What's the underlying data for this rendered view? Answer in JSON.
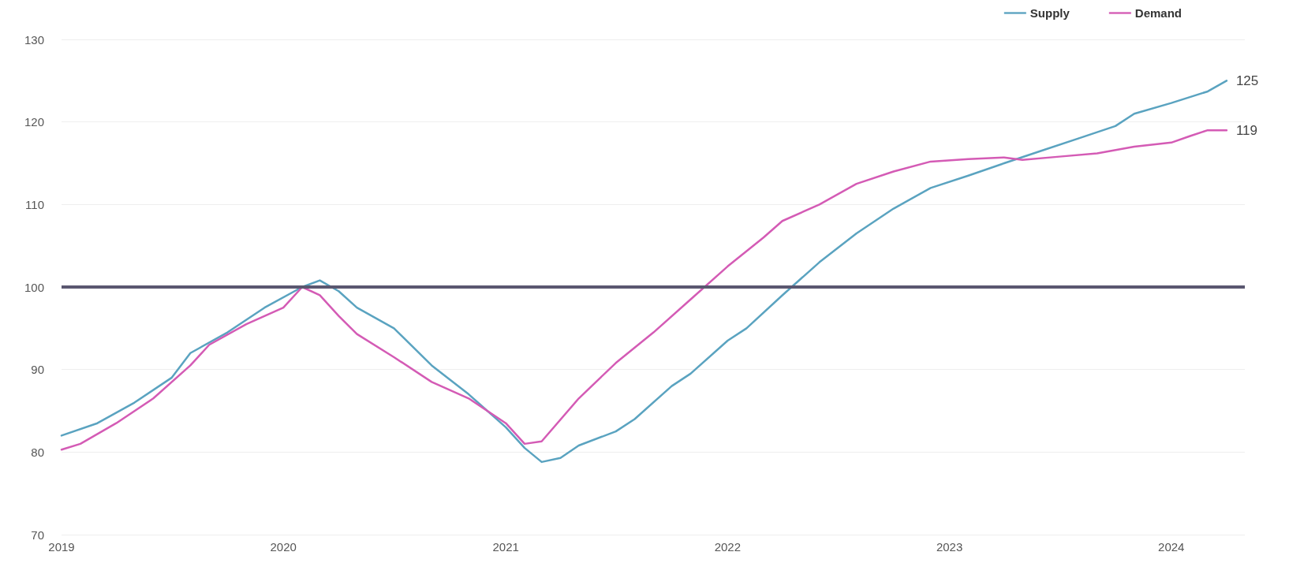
{
  "chart_data": {
    "type": "line",
    "xlim": [
      "2019-01",
      "2024-05"
    ],
    "xticks": [
      "2019",
      "2020",
      "2021",
      "2022",
      "2023",
      "2024"
    ],
    "ylim": [
      70,
      130
    ],
    "yticks": [
      70,
      80,
      90,
      100,
      110,
      120,
      130
    ],
    "grid": "y",
    "legend": "top right",
    "marker": "none",
    "line_style": "solid",
    "ref_lines": [
      {
        "axis": "y",
        "value": 100,
        "color": "#5a5770"
      }
    ],
    "series": [
      {
        "name": "Supply",
        "color": "#5aa3c0",
        "x": [
          "2019-01",
          "2019-03",
          "2019-05",
          "2019-07",
          "2019-08",
          "2019-10",
          "2019-12",
          "2020-02",
          "2020-03",
          "2020-04",
          "2020-05",
          "2020-07",
          "2020-09",
          "2020-11",
          "2021-01",
          "2021-02",
          "2021-03",
          "2021-04",
          "2021-05",
          "2021-07",
          "2021-08",
          "2021-10",
          "2021-11",
          "2022-01",
          "2022-02",
          "2022-04",
          "2022-06",
          "2022-08",
          "2022-10",
          "2022-12",
          "2023-02",
          "2023-04",
          "2023-06",
          "2023-08",
          "2023-10",
          "2023-11",
          "2024-01",
          "2024-03",
          "2024-04"
        ],
        "values": [
          82,
          83.5,
          86,
          89,
          92,
          94.5,
          97.5,
          100,
          100.8,
          99.5,
          97.5,
          95,
          90.5,
          87,
          83,
          80.5,
          78.8,
          79.3,
          80.8,
          82.5,
          84,
          88,
          89.5,
          93.5,
          95,
          99,
          103,
          106.5,
          109.5,
          112,
          113.5,
          115,
          116.5,
          118,
          119.5,
          121,
          122.3,
          123.7,
          125
        ],
        "value_labels": [
          null,
          null,
          null,
          null,
          null,
          null,
          null,
          null,
          null,
          null,
          null,
          null,
          null,
          null,
          null,
          null,
          null,
          null,
          null,
          null,
          null,
          null,
          null,
          null,
          null,
          null,
          null,
          null,
          null,
          null,
          null,
          null,
          null,
          null,
          null,
          null,
          null,
          null,
          "125"
        ]
      },
      {
        "name": "Demand",
        "color": "#d45bb5",
        "x": [
          "2019-01",
          "2019-02",
          "2019-04",
          "2019-06",
          "2019-08",
          "2019-09",
          "2019-11",
          "2020-01",
          "2020-02",
          "2020-03",
          "2020-04",
          "2020-05",
          "2020-07",
          "2020-09",
          "2020-11",
          "2021-01",
          "2021-02",
          "2021-03",
          "2021-05",
          "2021-07",
          "2021-09",
          "2021-11",
          "2022-01",
          "2022-03",
          "2022-04",
          "2022-06",
          "2022-08",
          "2022-10",
          "2022-12",
          "2023-02",
          "2023-04",
          "2023-05",
          "2023-07",
          "2023-09",
          "2023-11",
          "2024-01",
          "2024-02",
          "2024-03",
          "2024-04"
        ],
        "values": [
          80.3,
          81,
          83.5,
          86.5,
          90.5,
          93,
          95.5,
          97.5,
          100,
          99,
          96.5,
          94.3,
          91.5,
          88.5,
          86.5,
          83.5,
          81,
          81.3,
          86.5,
          90.8,
          94.5,
          98.5,
          102.5,
          106,
          108,
          110,
          112.5,
          114,
          115.2,
          115.5,
          115.7,
          115.4,
          115.8,
          116.2,
          117,
          117.5,
          118.3,
          119,
          119
        ],
        "value_labels": [
          null,
          null,
          null,
          null,
          null,
          null,
          null,
          null,
          null,
          null,
          null,
          null,
          null,
          null,
          null,
          null,
          null,
          null,
          null,
          null,
          null,
          null,
          null,
          null,
          null,
          null,
          null,
          null,
          null,
          null,
          null,
          null,
          null,
          null,
          null,
          null,
          null,
          null,
          "119"
        ]
      }
    ]
  }
}
